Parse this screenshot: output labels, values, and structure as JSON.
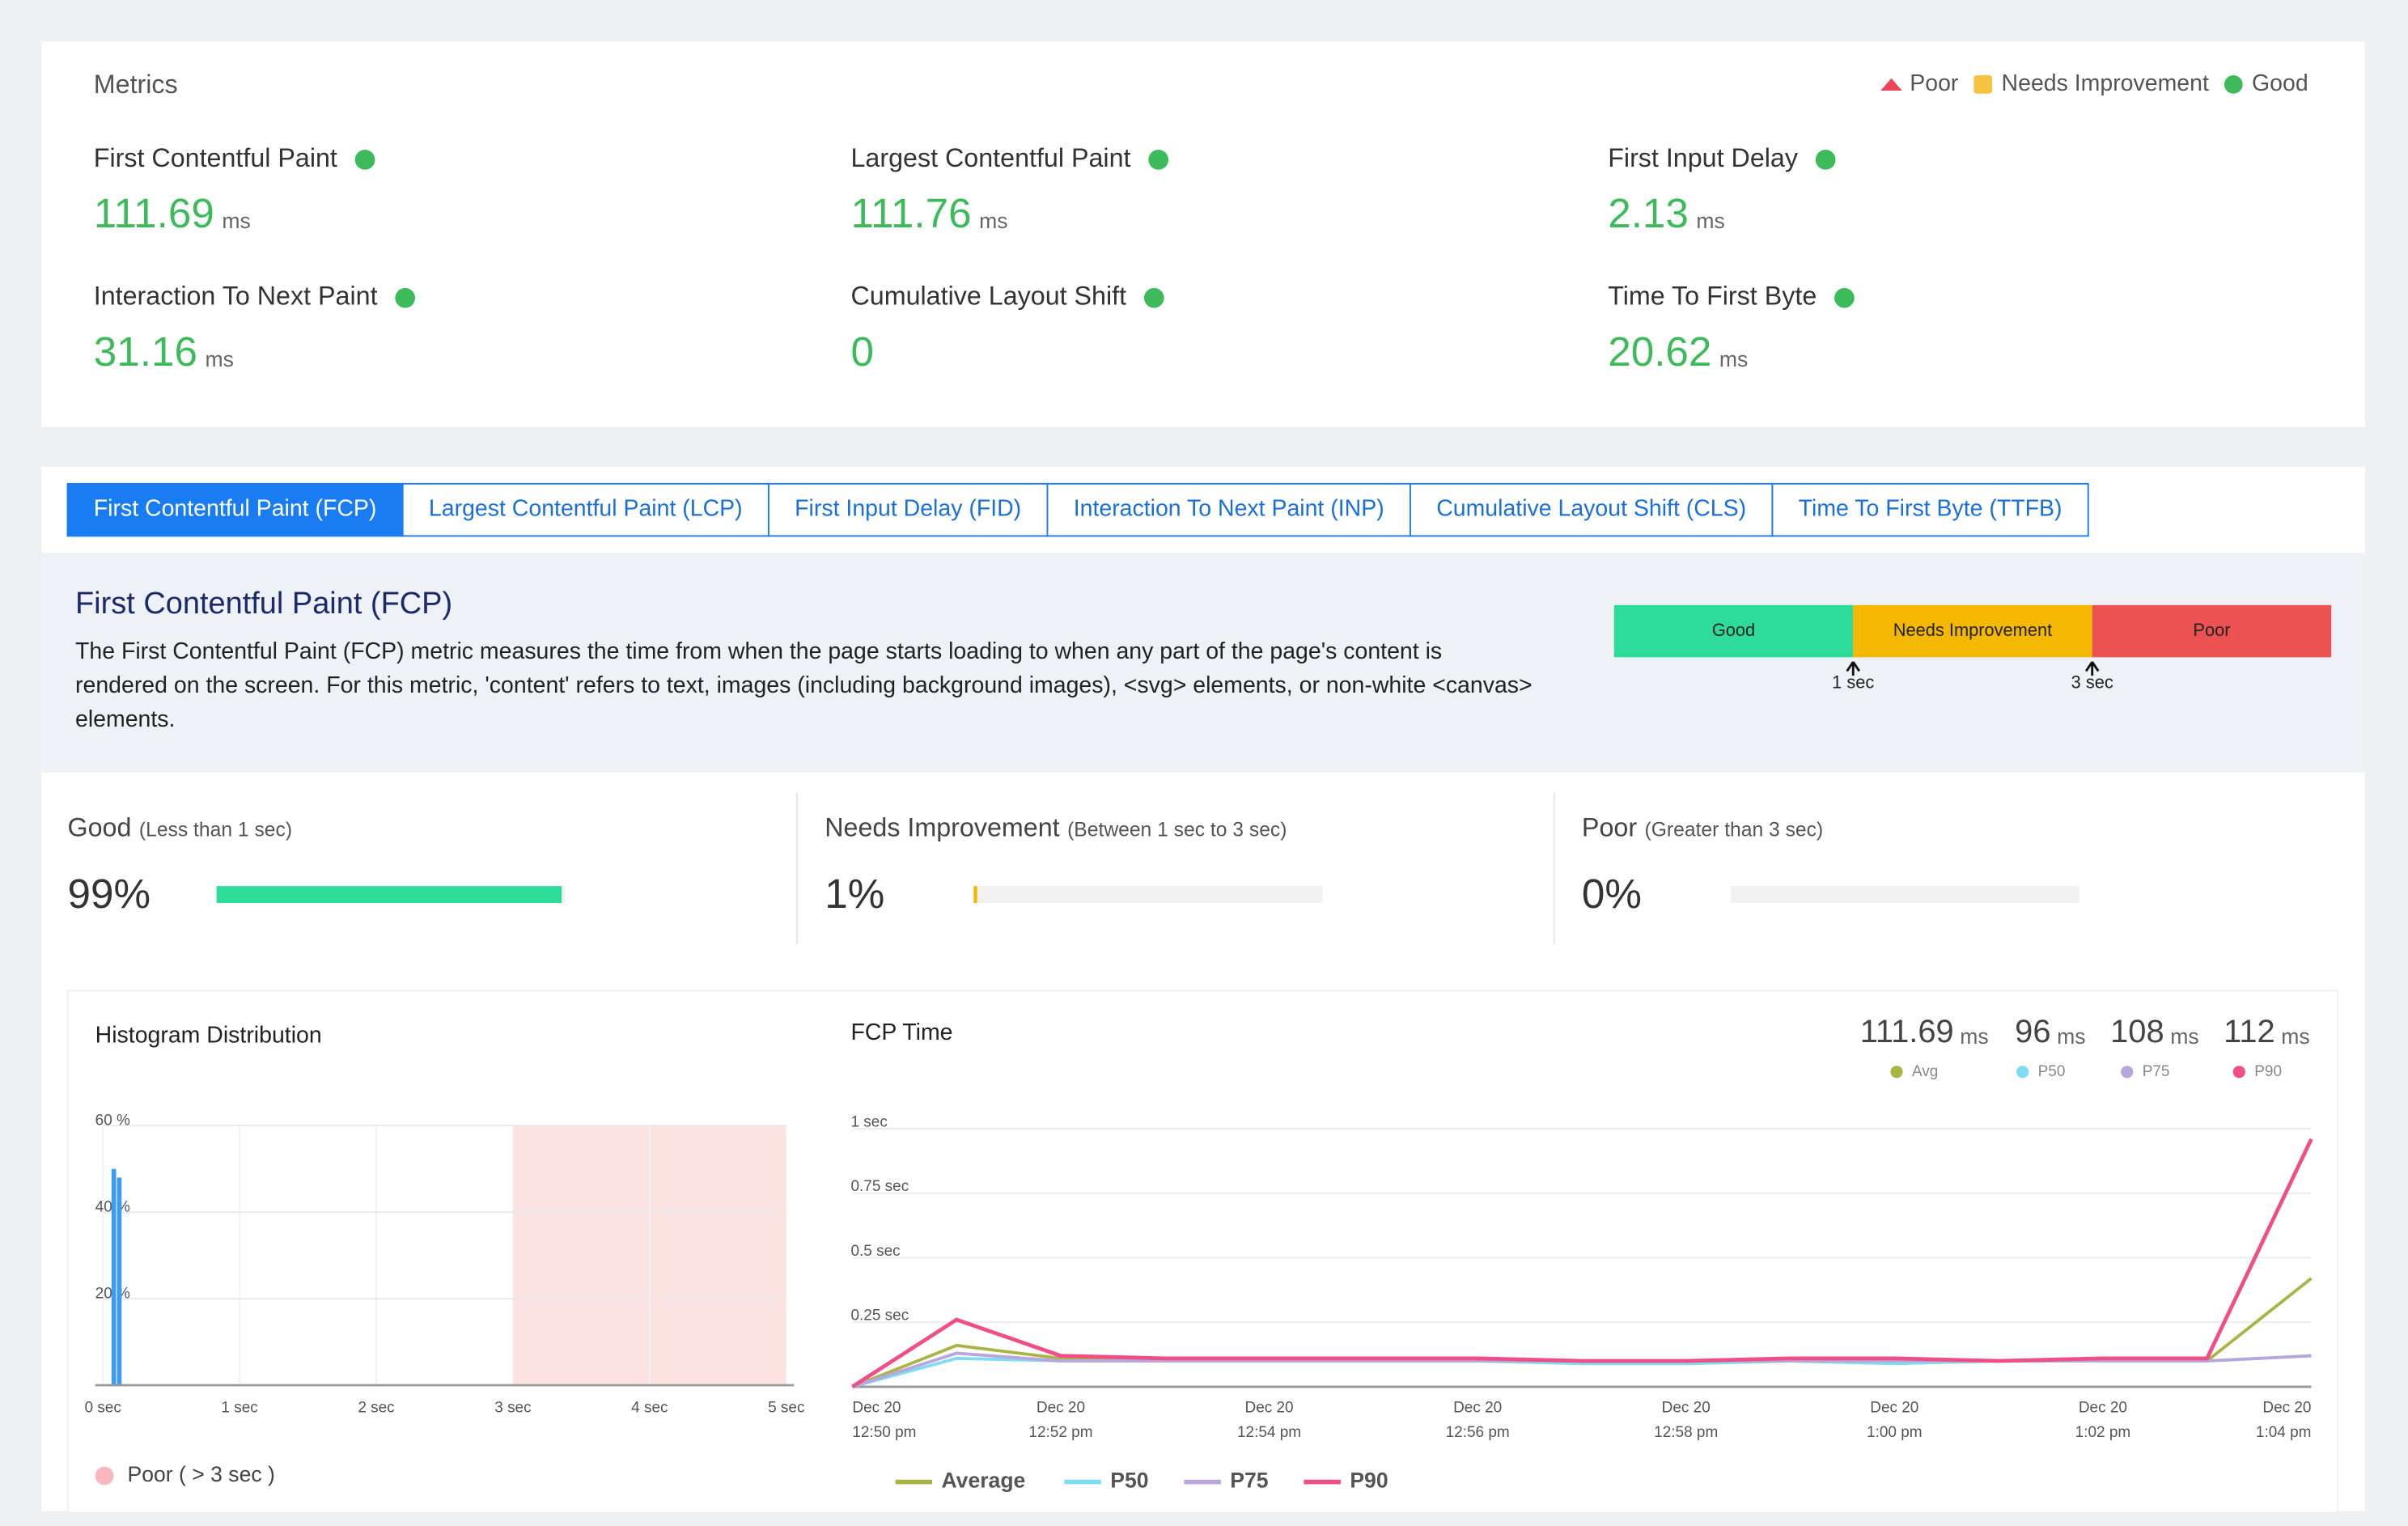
{
  "metrics": {
    "title": "Metrics",
    "legend": [
      {
        "name": "Poor",
        "color": "#e8485a",
        "shape": "triangle"
      },
      {
        "name": "Needs Improvement",
        "color": "#f5c242",
        "shape": "square"
      },
      {
        "name": "Good",
        "color": "#3dbb5a",
        "shape": "circle"
      }
    ],
    "items": [
      {
        "name": "First Contentful Paint",
        "value": "111.69",
        "unit": "ms",
        "color": "#3dbb5a"
      },
      {
        "name": "Largest Contentful Paint",
        "value": "111.76",
        "unit": "ms",
        "color": "#3dbb5a"
      },
      {
        "name": "First Input Delay",
        "value": "2.13",
        "unit": "ms",
        "color": "#3dbb5a"
      },
      {
        "name": "Interaction To Next Paint",
        "value": "31.16",
        "unit": "ms",
        "color": "#3dbb5a"
      },
      {
        "name": "Cumulative Layout Shift",
        "value": "0",
        "color": "#3dbb5a"
      },
      {
        "name": "Time To First Byte",
        "value": "20.62",
        "unit": "ms",
        "color": "#3dbb5a"
      }
    ]
  },
  "tabs": {
    "active": 0,
    "labels": [
      "First Contentful Paint (FCP)",
      "Largest Contentful Paint (LCP)",
      "First Input Delay (FID)",
      "Interaction To Next Paint (INP)",
      "Cumulative Layout Shift (CLS)",
      "Time To First Byte (TTFB)"
    ]
  },
  "detail": {
    "title": "First Contentful Paint (FCP)",
    "description": "The First Contentful Paint (FCP) metric measures the time from when the page starts loading to when any part of the page's content is rendered on the screen. For this metric, 'content' refers to text, images (including background images), <svg> elements, or non-white <canvas> elements.",
    "scale": {
      "segments": [
        {
          "name": "Good",
          "color": "#2ddc98"
        },
        {
          "name": "Needs Improvement",
          "color": "#f5b800"
        },
        {
          "name": "Poor",
          "color": "#ec5252"
        }
      ],
      "markers": [
        "1 sec",
        "3 sec"
      ]
    }
  },
  "summary": [
    {
      "label": "Good",
      "range": "(Less than 1 sec)",
      "percent": 99,
      "percent_label": "99%",
      "color": "#2ddc98"
    },
    {
      "label": "Needs Improvement",
      "range": "(Between 1 sec to 3 sec)",
      "percent": 1,
      "percent_label": "1%",
      "color": "#f5b800"
    },
    {
      "label": "Poor",
      "range": "(Greater than 3 sec)",
      "percent": 0,
      "percent_label": "0%",
      "color": "#ec5252"
    }
  ],
  "chart_data": [
    {
      "type": "histogram",
      "title": "Histogram Distribution",
      "x": [
        0.08,
        0.12
      ],
      "values": [
        50,
        48
      ],
      "color": "#3d9cf0",
      "xlim": [
        0,
        5
      ],
      "xticks": [
        {
          "value": 0,
          "label": "0 sec"
        },
        {
          "value": 1,
          "label": "1 sec"
        },
        {
          "value": 2,
          "label": "2 sec"
        },
        {
          "value": 3,
          "label": "3 sec"
        },
        {
          "value": 4,
          "label": "4 sec"
        },
        {
          "value": 5,
          "label": "5 sec"
        }
      ],
      "ylim": [
        0,
        60
      ],
      "yticks": [
        {
          "value": 20,
          "label": "20 %"
        },
        {
          "value": 40,
          "label": "40 %"
        },
        {
          "value": 60,
          "label": "60 %"
        }
      ],
      "grid": true,
      "bands": [
        {
          "name": "Poor ( > 3 sec )",
          "from": 3,
          "to": 5,
          "color": "#fde2e2",
          "legend_color": "#f7b7bd"
        }
      ]
    },
    {
      "type": "line",
      "title": "FCP Time",
      "x": [
        [
          "Dec 20",
          "12:50 pm"
        ],
        null,
        [
          "Dec 20",
          "12:52 pm"
        ],
        null,
        [
          "Dec 20",
          "12:54 pm"
        ],
        null,
        [
          "Dec 20",
          "12:56 pm"
        ],
        null,
        [
          "Dec 20",
          "12:58 pm"
        ],
        null,
        [
          "Dec 20",
          "1:00 pm"
        ],
        null,
        [
          "Dec 20",
          "1:02 pm"
        ],
        null,
        [
          "Dec 20",
          "1:04 pm"
        ]
      ],
      "ylim": [
        0,
        1
      ],
      "yticks": [
        {
          "value": 0.25,
          "label": "0.25 sec"
        },
        {
          "value": 0.5,
          "label": "0.5 sec"
        },
        {
          "value": 0.75,
          "label": "0.75 sec"
        },
        {
          "value": 1,
          "label": "1 sec"
        }
      ],
      "grid": true,
      "series": [
        {
          "name": "Average",
          "color": "#a8b545",
          "values": [
            0,
            0.16,
            0.11,
            0.1,
            0.1,
            0.1,
            0.1,
            0.09,
            0.09,
            0.1,
            0.09,
            0.1,
            0.1,
            0.1,
            0.42
          ]
        },
        {
          "name": "P50",
          "color": "#7fdcf5",
          "values": [
            0,
            0.11,
            0.1,
            0.1,
            0.1,
            0.1,
            0.1,
            0.09,
            0.09,
            0.1,
            0.09,
            0.1,
            0.1,
            0.1,
            0.12
          ]
        },
        {
          "name": "P75",
          "color": "#b9a6dd",
          "values": [
            0,
            0.13,
            0.1,
            0.1,
            0.1,
            0.1,
            0.1,
            0.1,
            0.1,
            0.1,
            0.1,
            0.1,
            0.1,
            0.1,
            0.12
          ]
        },
        {
          "name": "P90",
          "color": "#ef4f86",
          "values": [
            0,
            0.26,
            0.12,
            0.11,
            0.11,
            0.11,
            0.11,
            0.1,
            0.1,
            0.11,
            0.11,
            0.1,
            0.11,
            0.11,
            0.96
          ]
        }
      ],
      "stats": [
        {
          "value": "111.69",
          "unit": "ms",
          "label": "Avg",
          "color": "#a8b545"
        },
        {
          "value": "96",
          "unit": "ms",
          "label": "P50",
          "color": "#7fdcf5"
        },
        {
          "value": "108",
          "unit": "ms",
          "label": "P75",
          "color": "#b9a6dd"
        },
        {
          "value": "112",
          "unit": "ms",
          "label": "P90",
          "color": "#ef4f86"
        }
      ]
    }
  ]
}
